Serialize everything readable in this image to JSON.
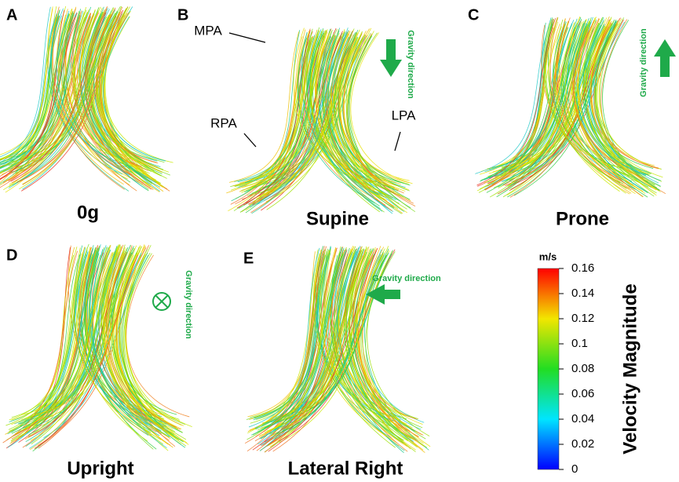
{
  "panels": [
    {
      "letter": "A",
      "label": "0g"
    },
    {
      "letter": "B",
      "label": "Supine",
      "gravity": "Gravity direction"
    },
    {
      "letter": "C",
      "label": "Prone",
      "gravity": "Gravity direction"
    },
    {
      "letter": "D",
      "label": "Upright",
      "gravity": "Gravity direction"
    },
    {
      "letter": "E",
      "label": "Lateral Right",
      "gravity": "Gravity direction"
    }
  ],
  "annotations": [
    "MPA",
    "RPA",
    "LPA"
  ],
  "colorbar": {
    "unit": "m/s",
    "title": "Velocity Magnitude",
    "lim": [
      0,
      0.16
    ],
    "ticks": [
      0,
      0.02,
      0.04,
      0.06,
      0.08,
      0.1,
      0.12,
      0.14,
      0.16
    ]
  }
}
